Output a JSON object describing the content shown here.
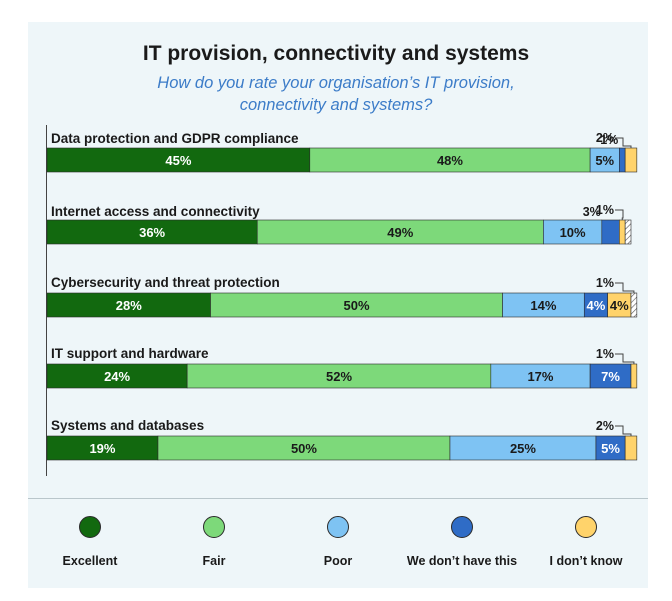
{
  "chart_data": {
    "type": "bar",
    "orientation": "horizontal",
    "stacked": true,
    "title": "IT provision, connectivity and systems",
    "subtitle_line1": "How do you rate your organisation’s IT provision,",
    "subtitle_line2": "connectivity and systems?",
    "categories": [
      "Data protection and GDPR compliance",
      "Internet access and connectivity",
      "Cybersecurity and threat protection",
      "IT support and hardware",
      "Systems and databases"
    ],
    "series": [
      {
        "name": "Excellent",
        "color": "#12690f",
        "label_color": "#ffffff",
        "values": [
          45,
          36,
          28,
          24,
          19
        ]
      },
      {
        "name": "Fair",
        "color": "#7dd97a",
        "label_color": "#1a1a1a",
        "values": [
          48,
          49,
          50,
          52,
          50
        ]
      },
      {
        "name": "Poor",
        "color": "#7ec3f3",
        "label_color": "#1a1a1a",
        "values": [
          5,
          10,
          14,
          17,
          25
        ]
      },
      {
        "name": "We don’t have this",
        "color": "#2f6cc6",
        "label_color": "#ffffff",
        "values": [
          1,
          3,
          4,
          7,
          5
        ]
      },
      {
        "name": "I don’t know",
        "color": "#ffd36b",
        "label_color": "#1a1a1a",
        "values": [
          2,
          1,
          4,
          1,
          2
        ]
      },
      {
        "name": "Unlabelled remainder",
        "color": "hatched",
        "label_color": "#1a1a1a",
        "values": [
          0,
          1,
          1,
          0,
          0
        ],
        "hidden_from_legend": true
      }
    ],
    "data_labels": [
      {
        "row": 0,
        "series": 0,
        "text": "45%",
        "placement": "inside"
      },
      {
        "row": 0,
        "series": 1,
        "text": "48%",
        "placement": "inside"
      },
      {
        "row": 0,
        "series": 2,
        "text": "5%",
        "placement": "inside"
      },
      {
        "row": 0,
        "series": 3,
        "text": "1%",
        "placement": "above"
      },
      {
        "row": 0,
        "series": 4,
        "text": "2%",
        "placement": "callout"
      },
      {
        "row": 1,
        "series": 0,
        "text": "36%",
        "placement": "inside"
      },
      {
        "row": 1,
        "series": 1,
        "text": "49%",
        "placement": "inside"
      },
      {
        "row": 1,
        "series": 2,
        "text": "10%",
        "placement": "inside"
      },
      {
        "row": 1,
        "series": 3,
        "text": "3%",
        "placement": "above"
      },
      {
        "row": 1,
        "series": 4,
        "text": "1%",
        "placement": "callout"
      },
      {
        "row": 2,
        "series": 0,
        "text": "28%",
        "placement": "inside"
      },
      {
        "row": 2,
        "series": 1,
        "text": "50%",
        "placement": "inside"
      },
      {
        "row": 2,
        "series": 2,
        "text": "14%",
        "placement": "inside"
      },
      {
        "row": 2,
        "series": 3,
        "text": "4%",
        "placement": "inside"
      },
      {
        "row": 2,
        "series": 4,
        "text": "4%",
        "placement": "inside"
      },
      {
        "row": 2,
        "series": 5,
        "text": "1%",
        "placement": "callout"
      },
      {
        "row": 3,
        "series": 0,
        "text": "24%",
        "placement": "inside"
      },
      {
        "row": 3,
        "series": 1,
        "text": "52%",
        "placement": "inside"
      },
      {
        "row": 3,
        "series": 2,
        "text": "17%",
        "placement": "inside"
      },
      {
        "row": 3,
        "series": 3,
        "text": "7%",
        "placement": "inside"
      },
      {
        "row": 3,
        "series": 4,
        "text": "1%",
        "placement": "callout"
      },
      {
        "row": 4,
        "series": 0,
        "text": "19%",
        "placement": "inside"
      },
      {
        "row": 4,
        "series": 1,
        "text": "50%",
        "placement": "inside"
      },
      {
        "row": 4,
        "series": 2,
        "text": "25%",
        "placement": "inside"
      },
      {
        "row": 4,
        "series": 3,
        "text": "5%",
        "placement": "inside"
      },
      {
        "row": 4,
        "series": 4,
        "text": "2%",
        "placement": "callout"
      }
    ],
    "xlim": [
      0,
      100
    ],
    "xlabel": "",
    "ylabel": "",
    "grid": false,
    "legend_position": "bottom"
  }
}
